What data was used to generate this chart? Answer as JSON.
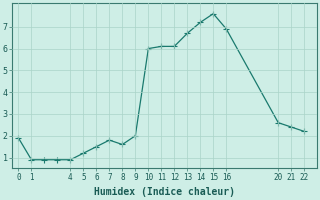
{
  "x": [
    0,
    1,
    2,
    3,
    4,
    5,
    6,
    7,
    8,
    9,
    10,
    11,
    12,
    13,
    14,
    15,
    16,
    20,
    21,
    22
  ],
  "y": [
    1.9,
    0.9,
    0.9,
    0.9,
    0.9,
    1.2,
    1.5,
    1.8,
    1.6,
    2.0,
    6.0,
    6.1,
    6.1,
    6.7,
    7.2,
    7.6,
    6.9,
    2.6,
    2.4,
    2.2
  ],
  "xticks": [
    0,
    1,
    4,
    5,
    6,
    7,
    8,
    9,
    10,
    11,
    12,
    13,
    14,
    15,
    16,
    20,
    21,
    22
  ],
  "yticks": [
    1,
    2,
    3,
    4,
    5,
    6,
    7
  ],
  "ylim": [
    0.5,
    8.1
  ],
  "xlim": [
    -0.5,
    23.0
  ],
  "xlabel": "Humidex (Indice chaleur)",
  "line_color": "#1a7a6e",
  "marker": "+",
  "markersize": 4,
  "linewidth": 0.9,
  "background_color": "#ceeee6",
  "grid_color": "#aad4c8",
  "tick_color": "#1a5c55",
  "label_fontsize": 5.5,
  "xlabel_fontsize": 7.0
}
